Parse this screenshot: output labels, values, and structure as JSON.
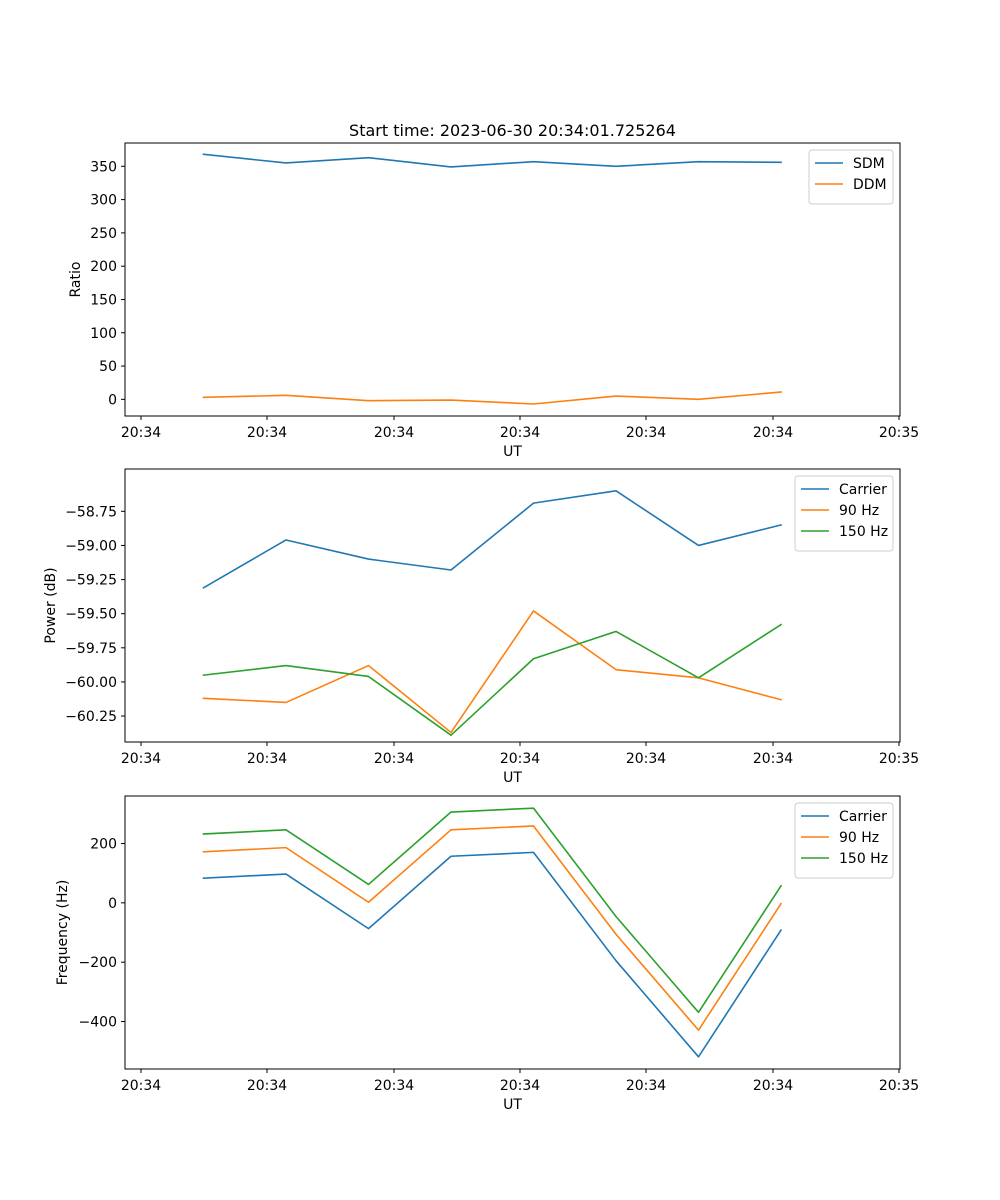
{
  "title": "Start time: 2023-06-30 20:34:01.725264",
  "chart_data": [
    {
      "type": "line",
      "xlabel": "UT",
      "ylabel": "Ratio",
      "x": [
        "20:34",
        "20:34",
        "20:34",
        "20:34",
        "20:34",
        "20:34",
        "20:34",
        "20:34"
      ],
      "xticks": [
        "20:34",
        "20:34",
        "20:34",
        "20:34",
        "20:34",
        "20:34",
        "20:35"
      ],
      "ylim": [
        -25,
        385
      ],
      "yticks": [
        0,
        50,
        100,
        150,
        200,
        250,
        300,
        350
      ],
      "ytick_labels": [
        "0",
        "50",
        "100",
        "150",
        "200",
        "250",
        "300",
        "350"
      ],
      "legend": "top-right",
      "series": [
        {
          "name": "SDM",
          "color": "#1f77b4",
          "values": [
            368,
            355,
            363,
            349,
            357,
            350,
            357,
            356
          ]
        },
        {
          "name": "DDM",
          "color": "#ff7f0e",
          "values": [
            3,
            6,
            -2,
            -1,
            -7,
            5,
            0,
            11
          ]
        }
      ]
    },
    {
      "type": "line",
      "xlabel": "UT",
      "ylabel": "Power (dB)",
      "x": [
        "20:34",
        "20:34",
        "20:34",
        "20:34",
        "20:34",
        "20:34",
        "20:34",
        "20:34"
      ],
      "xticks": [
        "20:34",
        "20:34",
        "20:34",
        "20:34",
        "20:34",
        "20:34",
        "20:35"
      ],
      "ylim": [
        -60.44,
        -58.44
      ],
      "yticks": [
        -60.25,
        -60.0,
        -59.75,
        -59.5,
        -59.25,
        -59.0,
        -58.75
      ],
      "ytick_labels": [
        "−60.25",
        "−60.00",
        "−59.75",
        "−59.50",
        "−59.25",
        "−59.00",
        "−58.75"
      ],
      "legend": "top-right",
      "series": [
        {
          "name": "Carrier",
          "color": "#1f77b4",
          "values": [
            -59.31,
            -58.96,
            -59.1,
            -59.18,
            -58.69,
            -58.6,
            -59.0,
            -58.85
          ]
        },
        {
          "name": "90 Hz",
          "color": "#ff7f0e",
          "values": [
            -60.12,
            -60.15,
            -59.88,
            -60.37,
            -59.48,
            -59.91,
            -59.97,
            -60.13
          ]
        },
        {
          "name": "150 Hz",
          "color": "#2ca02c",
          "values": [
            -59.95,
            -59.88,
            -59.96,
            -60.39,
            -59.83,
            -59.63,
            -59.97,
            -59.58
          ]
        }
      ]
    },
    {
      "type": "line",
      "xlabel": "UT",
      "ylabel": "Frequency (Hz)",
      "x": [
        "20:34",
        "20:34",
        "20:34",
        "20:34",
        "20:34",
        "20:34",
        "20:34",
        "20:34"
      ],
      "xticks": [
        "20:34",
        "20:34",
        "20:34",
        "20:34",
        "20:34",
        "20:34",
        "20:35"
      ],
      "ylim": [
        -560,
        360
      ],
      "yticks": [
        -400,
        -200,
        0,
        200
      ],
      "ytick_labels": [
        "−400",
        "−200",
        "0",
        "200"
      ],
      "legend": "top-right",
      "series": [
        {
          "name": "Carrier",
          "color": "#1f77b4",
          "values": [
            83,
            97,
            -87,
            157,
            170,
            -195,
            -519,
            -92
          ]
        },
        {
          "name": "90 Hz",
          "color": "#ff7f0e",
          "values": [
            172,
            186,
            2,
            246,
            259,
            -106,
            -429,
            -3
          ]
        },
        {
          "name": "150 Hz",
          "color": "#2ca02c",
          "values": [
            232,
            246,
            62,
            306,
            319,
            -46,
            -369,
            57
          ]
        }
      ]
    }
  ]
}
